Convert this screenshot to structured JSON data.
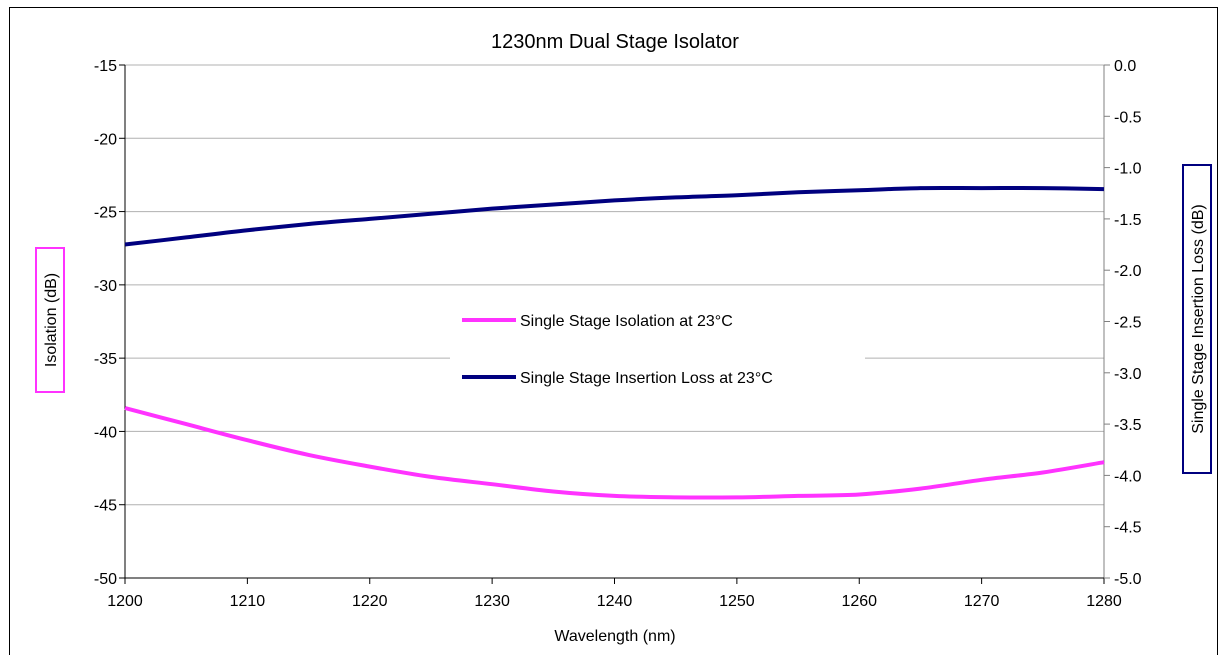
{
  "chart_data": {
    "type": "line",
    "title": "1230nm Dual Stage Isolator",
    "xlabel": "Wavelength (nm)",
    "ylabel_left": "Isolation (dB)",
    "ylabel_right": "Single Stage Insertion Loss (dB)",
    "xlim": [
      1200,
      1280
    ],
    "ylim_left": [
      -50,
      -15
    ],
    "ylim_right": [
      -5.0,
      0.0
    ],
    "x_ticks": [
      "1200",
      "1210",
      "1220",
      "1230",
      "1240",
      "1250",
      "1260",
      "1270",
      "1280"
    ],
    "y_left_ticks": [
      "-15",
      "-20",
      "-25",
      "-30",
      "-35",
      "-40",
      "-45",
      "-50"
    ],
    "y_right_ticks": [
      "0.0",
      "-0.5",
      "-1.0",
      "-1.5",
      "-2.0",
      "-2.5",
      "-3.0",
      "-3.5",
      "-4.0",
      "-4.5",
      "-5.0"
    ],
    "grid": "horizontal",
    "legend_position": "center",
    "series": [
      {
        "name": "Single Stage Isolation at 23°C",
        "axis": "left",
        "color": "#ff33ff",
        "x": [
          1200,
          1205,
          1210,
          1215,
          1220,
          1225,
          1230,
          1235,
          1240,
          1245,
          1250,
          1255,
          1260,
          1265,
          1270,
          1275,
          1280
        ],
        "y": [
          -38.4,
          -39.5,
          -40.6,
          -41.6,
          -42.4,
          -43.1,
          -43.6,
          -44.1,
          -44.4,
          -44.5,
          -44.5,
          -44.4,
          -44.3,
          -43.9,
          -43.3,
          -42.8,
          -42.1
        ]
      },
      {
        "name": "Single Stage Insertion Loss at 23°C",
        "axis": "right",
        "color": "#00007f",
        "x": [
          1200,
          1205,
          1210,
          1215,
          1220,
          1225,
          1230,
          1235,
          1240,
          1245,
          1250,
          1255,
          1260,
          1265,
          1270,
          1275,
          1280
        ],
        "y": [
          -1.75,
          -1.68,
          -1.61,
          -1.55,
          -1.5,
          -1.45,
          -1.4,
          -1.36,
          -1.32,
          -1.29,
          -1.27,
          -1.24,
          -1.22,
          -1.2,
          -1.2,
          -1.2,
          -1.21
        ]
      }
    ]
  }
}
